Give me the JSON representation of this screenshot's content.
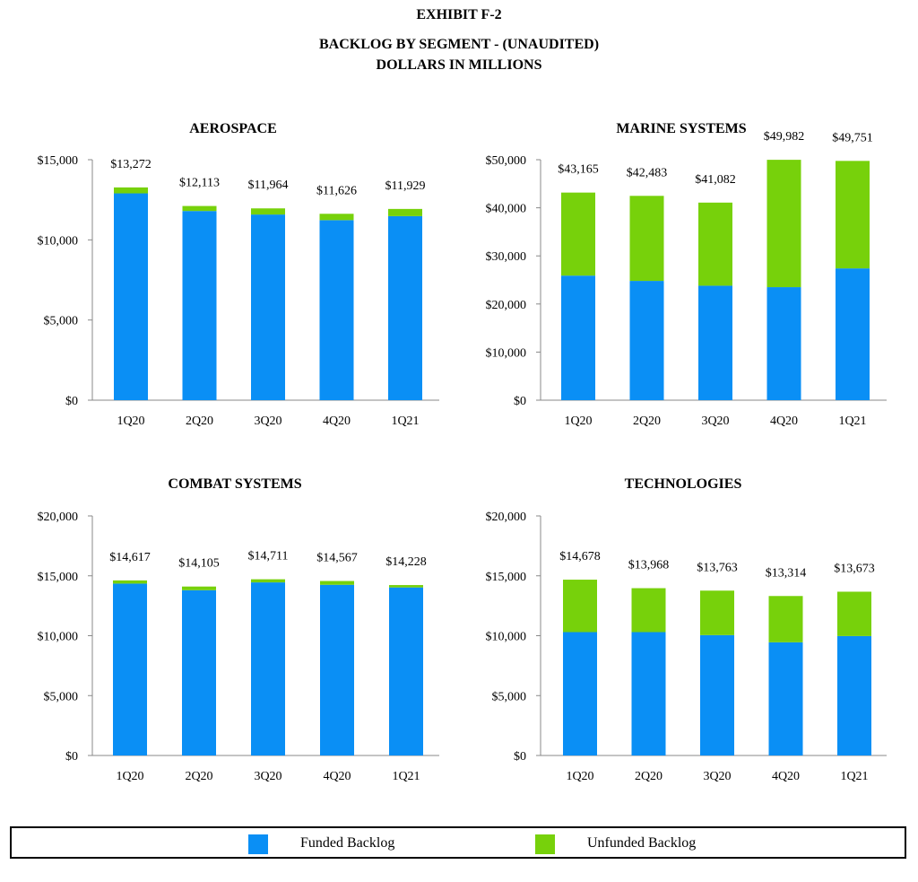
{
  "header": {
    "exhibit": "EXHIBIT F-2",
    "title": "BACKLOG BY SEGMENT - (UNAUDITED)",
    "subtitle": "DOLLARS IN MILLIONS"
  },
  "legend": {
    "funded_label": "Funded Backlog",
    "unfunded_label": "Unfunded Backlog"
  },
  "colors": {
    "funded": "#0a8ff5",
    "unfunded": "#77d10b",
    "axis": "#888888"
  },
  "chart_data": [
    {
      "type": "bar",
      "stacked": true,
      "title": "AEROSPACE",
      "categories": [
        "1Q20",
        "2Q20",
        "3Q20",
        "4Q20",
        "1Q21"
      ],
      "series": [
        {
          "name": "Funded Backlog",
          "values": [
            12900,
            11800,
            11580,
            11230,
            11480
          ]
        },
        {
          "name": "Unfunded Backlog",
          "values": [
            372,
            313,
            384,
            396,
            449
          ]
        }
      ],
      "total_labels": [
        "$13,272",
        "$12,113",
        "$11,964",
        "$11,626",
        "$11,929"
      ],
      "totals": [
        13272,
        12113,
        11964,
        11626,
        11929
      ],
      "ylim": [
        0,
        15000
      ],
      "yticks": [
        0,
        5000,
        10000,
        15000
      ],
      "ytick_labels": [
        "$0",
        "$5,000",
        "$10,000",
        "$15,000"
      ]
    },
    {
      "type": "bar",
      "stacked": true,
      "title": "MARINE SYSTEMS",
      "categories": [
        "1Q20",
        "2Q20",
        "3Q20",
        "4Q20",
        "1Q21"
      ],
      "series": [
        {
          "name": "Funded Backlog",
          "values": [
            25900,
            24800,
            23800,
            23500,
            27400
          ]
        },
        {
          "name": "Unfunded Backlog",
          "values": [
            17265,
            17683,
            17282,
            26482,
            22351
          ]
        }
      ],
      "total_labels": [
        "$43,165",
        "$42,483",
        "$41,082",
        "$49,982",
        "$49,751"
      ],
      "totals": [
        43165,
        42483,
        41082,
        49982,
        49751
      ],
      "ylim": [
        0,
        50000
      ],
      "yticks": [
        0,
        10000,
        20000,
        30000,
        40000,
        50000
      ],
      "ytick_labels": [
        "$0",
        "$10,000",
        "$20,000",
        "$30,000",
        "$40,000",
        "$50,000"
      ]
    },
    {
      "type": "bar",
      "stacked": true,
      "title": "COMBAT SYSTEMS",
      "categories": [
        "1Q20",
        "2Q20",
        "3Q20",
        "4Q20",
        "1Q21"
      ],
      "series": [
        {
          "name": "Funded Backlog",
          "values": [
            14350,
            13800,
            14450,
            14250,
            14030
          ]
        },
        {
          "name": "Unfunded Backlog",
          "values": [
            267,
            305,
            261,
            317,
            198
          ]
        }
      ],
      "total_labels": [
        "$14,617",
        "$14,105",
        "$14,711",
        "$14,567",
        "$14,228"
      ],
      "totals": [
        14617,
        14105,
        14711,
        14567,
        14228
      ],
      "ylim": [
        0,
        20000
      ],
      "yticks": [
        0,
        5000,
        10000,
        15000,
        20000
      ],
      "ytick_labels": [
        "$0",
        "$5,000",
        "$10,000",
        "$15,000",
        "$20,000"
      ]
    },
    {
      "type": "bar",
      "stacked": true,
      "title": "TECHNOLOGIES",
      "categories": [
        "1Q20",
        "2Q20",
        "3Q20",
        "4Q20",
        "1Q21"
      ],
      "series": [
        {
          "name": "Funded Backlog",
          "values": [
            10300,
            10300,
            10050,
            9450,
            9970
          ]
        },
        {
          "name": "Unfunded Backlog",
          "values": [
            4378,
            3668,
            3713,
            3864,
            3703
          ]
        }
      ],
      "total_labels": [
        "$14,678",
        "$13,968",
        "$13,763",
        "$13,314",
        "$13,673"
      ],
      "totals": [
        14678,
        13968,
        13763,
        13314,
        13673
      ],
      "ylim": [
        0,
        20000
      ],
      "yticks": [
        0,
        5000,
        10000,
        15000,
        20000
      ],
      "ytick_labels": [
        "$0",
        "$5,000",
        "$10,000",
        "$15,000",
        "$20,000"
      ]
    }
  ]
}
